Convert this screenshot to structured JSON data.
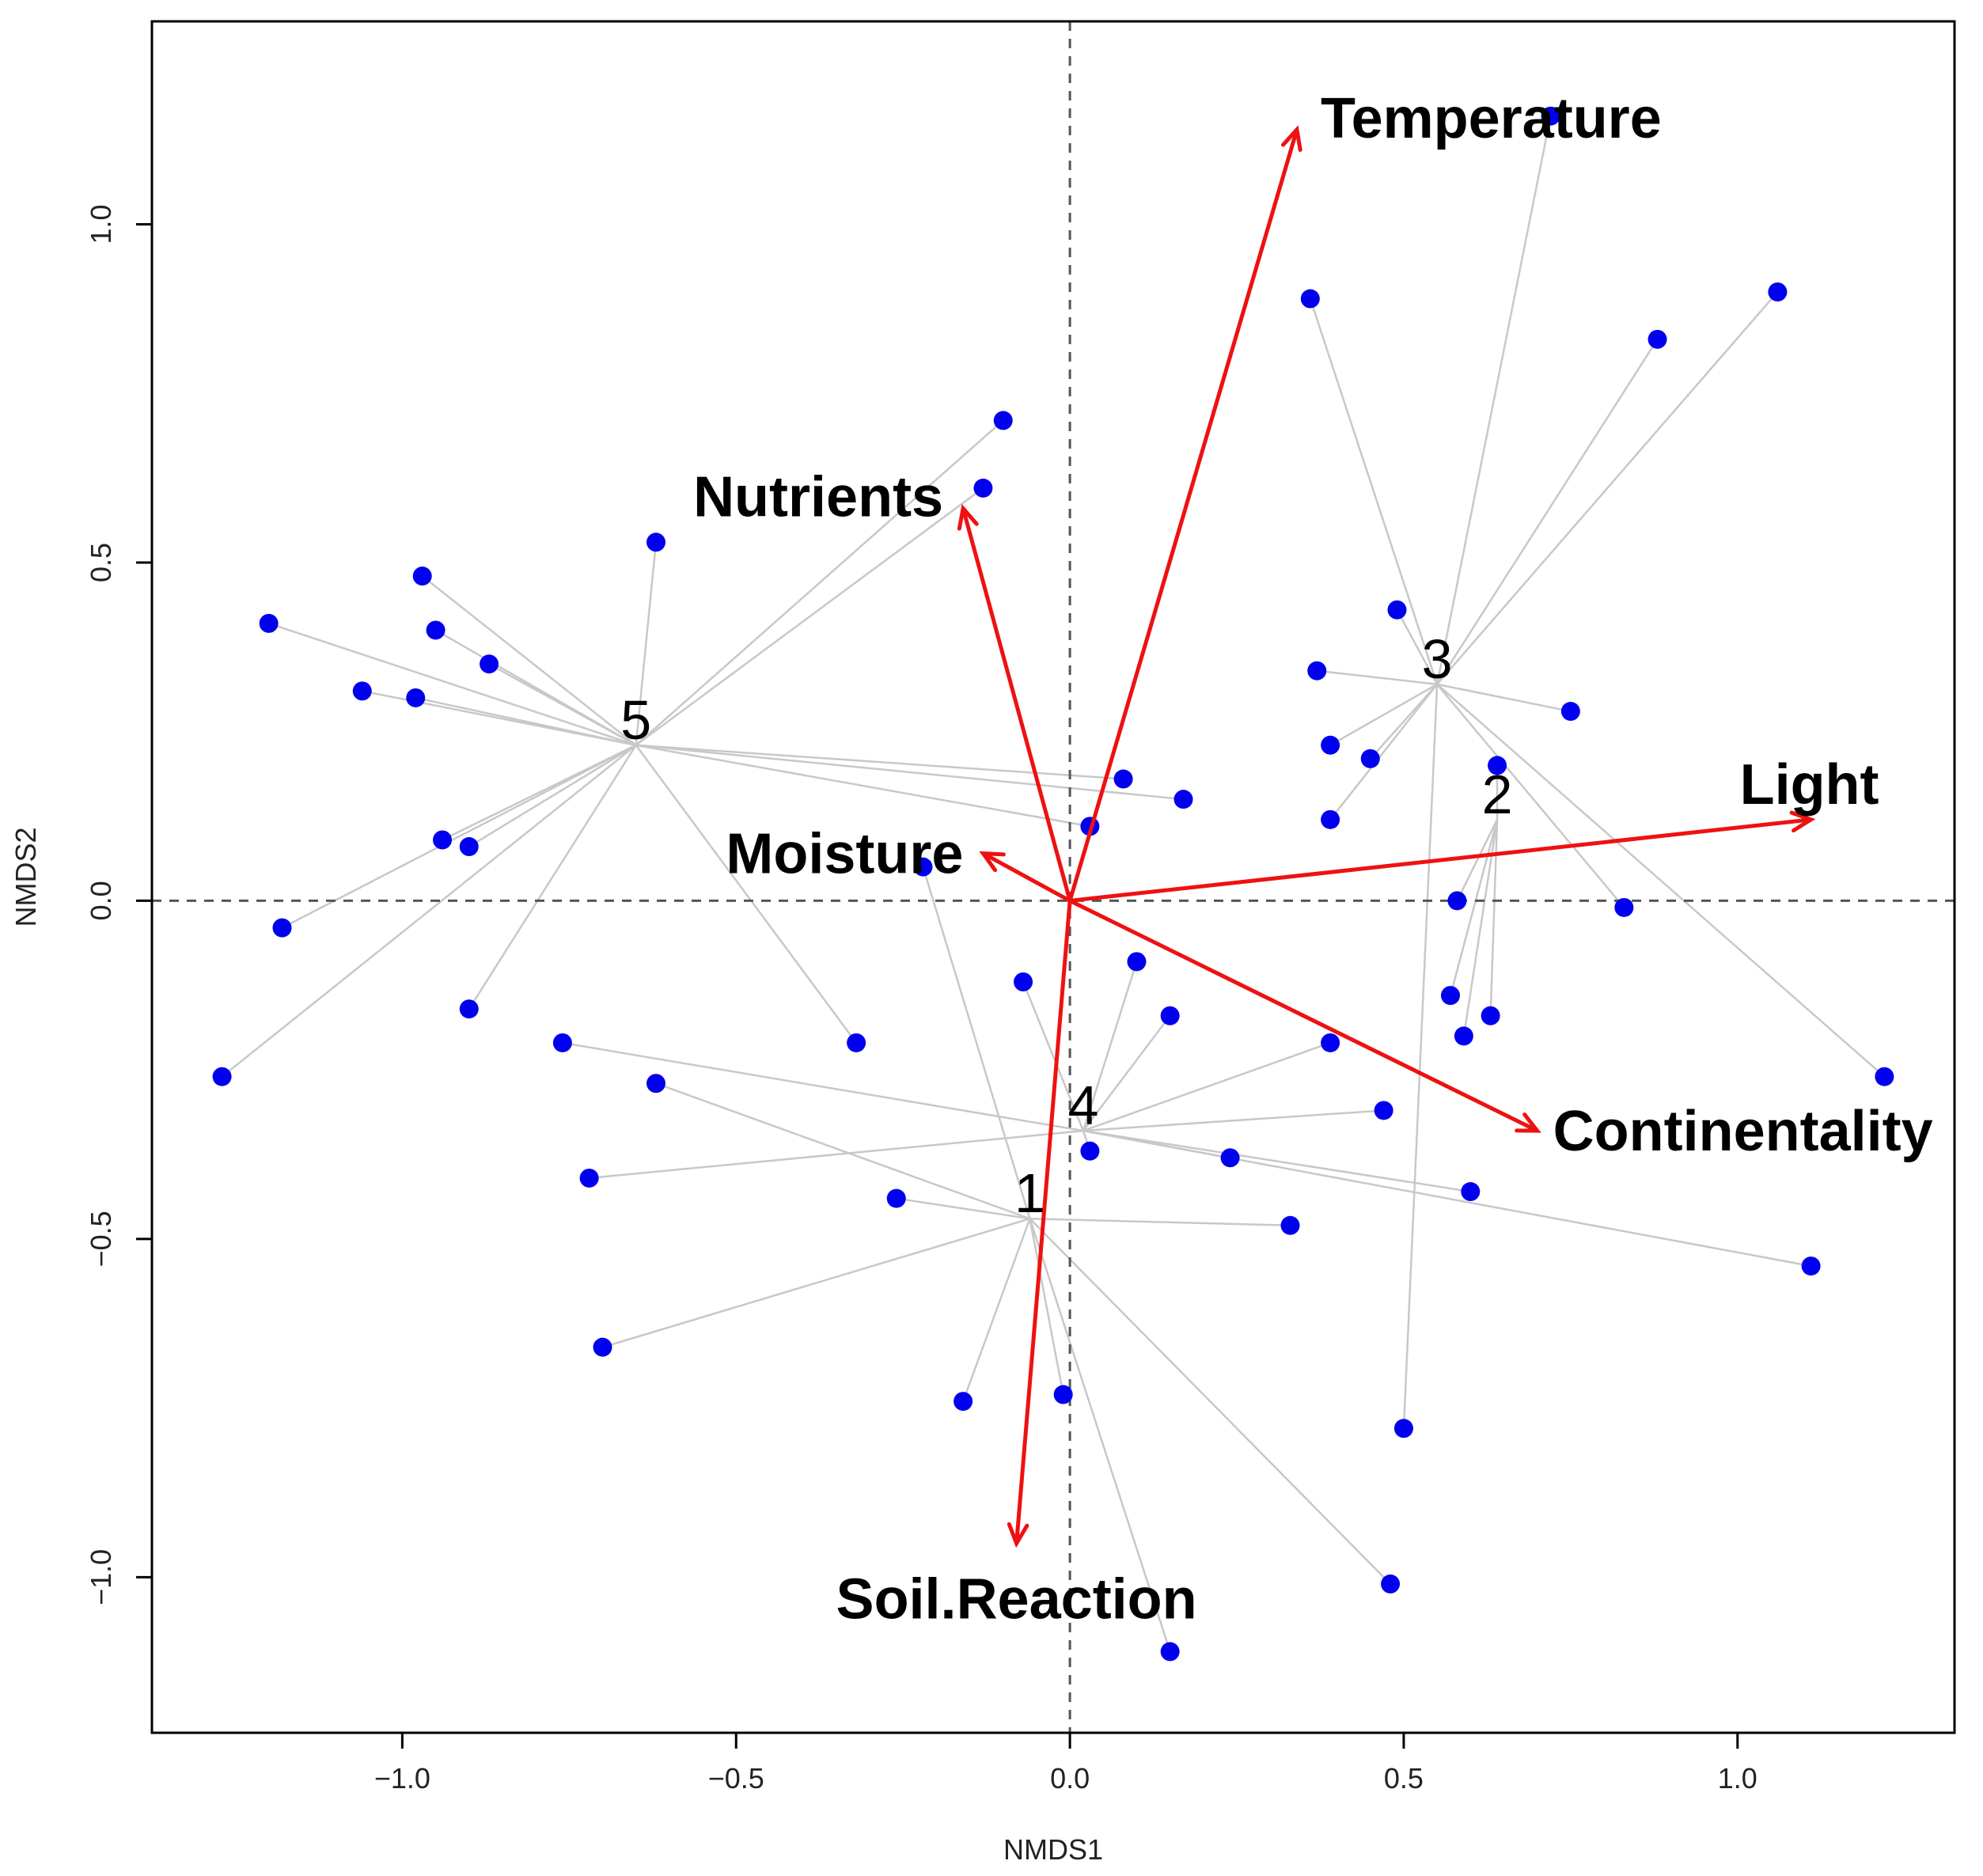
{
  "chart_data": {
    "type": "scatter",
    "xlabel": "NMDS1",
    "ylabel": "NMDS2",
    "xlim": [
      -1.375,
      1.325
    ],
    "ylim": [
      -1.23,
      1.3
    ],
    "xticks": [
      -1.0,
      -0.5,
      0.0,
      0.5,
      1.0
    ],
    "xtick_labels": [
      "−1.0",
      "−0.5",
      "0.0",
      "0.5",
      "1.0"
    ],
    "yticks": [
      -1.0,
      -0.5,
      0.0,
      0.5,
      1.0
    ],
    "ytick_labels": [
      "−1.0",
      "−0.5",
      "0.0",
      "0.5",
      "1.0"
    ],
    "zero_lines": true,
    "grid": false,
    "colors": {
      "points": "#0000ee",
      "arrows": "#ee1111",
      "spider": "#c8c8c8",
      "zero_line": "#555555",
      "frame": "#000000"
    },
    "centroids": [
      {
        "label": "1",
        "x": -0.06,
        "y": -0.47
      },
      {
        "label": "2",
        "x": 0.64,
        "y": 0.12
      },
      {
        "label": "3",
        "x": 0.55,
        "y": 0.32
      },
      {
        "label": "4",
        "x": 0.02,
        "y": -0.34
      },
      {
        "label": "5",
        "x": -0.65,
        "y": 0.23
      }
    ],
    "points": [
      {
        "x": 0.72,
        "y": 1.16,
        "group": "3"
      },
      {
        "x": 0.36,
        "y": 0.89,
        "group": "3"
      },
      {
        "x": 1.06,
        "y": 0.9,
        "group": "3"
      },
      {
        "x": 0.88,
        "y": 0.83,
        "group": "3"
      },
      {
        "x": 0.49,
        "y": 0.43,
        "group": "3"
      },
      {
        "x": 0.37,
        "y": 0.34,
        "group": "3"
      },
      {
        "x": 0.75,
        "y": 0.28,
        "group": "3"
      },
      {
        "x": 0.39,
        "y": 0.23,
        "group": "3"
      },
      {
        "x": 0.45,
        "y": 0.21,
        "group": "3"
      },
      {
        "x": 0.39,
        "y": 0.12,
        "group": "3"
      },
      {
        "x": 0.83,
        "y": -0.01,
        "group": "3"
      },
      {
        "x": 1.22,
        "y": -0.26,
        "group": "3"
      },
      {
        "x": 0.5,
        "y": -0.78,
        "group": "3"
      },
      {
        "x": 0.64,
        "y": 0.2,
        "group": "2"
      },
      {
        "x": 0.58,
        "y": 0.0,
        "group": "2"
      },
      {
        "x": 0.57,
        "y": -0.14,
        "group": "2"
      },
      {
        "x": 0.63,
        "y": -0.17,
        "group": "2"
      },
      {
        "x": 0.59,
        "y": -0.2,
        "group": "2"
      },
      {
        "x": -0.1,
        "y": 0.71,
        "group": "5"
      },
      {
        "x": -0.13,
        "y": 0.61,
        "group": "5"
      },
      {
        "x": -0.62,
        "y": 0.53,
        "group": "5"
      },
      {
        "x": -0.97,
        "y": 0.48,
        "group": "5"
      },
      {
        "x": -1.2,
        "y": 0.41,
        "group": "5"
      },
      {
        "x": -0.95,
        "y": 0.4,
        "group": "5"
      },
      {
        "x": -0.87,
        "y": 0.35,
        "group": "5"
      },
      {
        "x": -1.06,
        "y": 0.31,
        "group": "5"
      },
      {
        "x": -0.98,
        "y": 0.3,
        "group": "5"
      },
      {
        "x": 0.08,
        "y": 0.18,
        "group": "5"
      },
      {
        "x": 0.17,
        "y": 0.15,
        "group": "5"
      },
      {
        "x": 0.03,
        "y": 0.11,
        "group": "5"
      },
      {
        "x": -0.94,
        "y": 0.09,
        "group": "5"
      },
      {
        "x": -0.9,
        "y": 0.08,
        "group": "5"
      },
      {
        "x": -1.18,
        "y": -0.04,
        "group": "5"
      },
      {
        "x": -0.9,
        "y": -0.16,
        "group": "5"
      },
      {
        "x": -1.27,
        "y": -0.26,
        "group": "5"
      },
      {
        "x": -0.32,
        "y": -0.21,
        "group": "5"
      },
      {
        "x": 0.1,
        "y": -0.09,
        "group": "4"
      },
      {
        "x": -0.07,
        "y": -0.12,
        "group": "4"
      },
      {
        "x": 0.15,
        "y": -0.17,
        "group": "4"
      },
      {
        "x": 0.39,
        "y": -0.21,
        "group": "4"
      },
      {
        "x": -0.76,
        "y": -0.21,
        "group": "4"
      },
      {
        "x": 0.47,
        "y": -0.31,
        "group": "4"
      },
      {
        "x": 0.03,
        "y": -0.37,
        "group": "4"
      },
      {
        "x": 0.24,
        "y": -0.38,
        "group": "4"
      },
      {
        "x": -0.72,
        "y": -0.41,
        "group": "4"
      },
      {
        "x": 0.6,
        "y": -0.43,
        "group": "4"
      },
      {
        "x": 1.11,
        "y": -0.54,
        "group": "4"
      },
      {
        "x": -0.22,
        "y": 0.05,
        "group": "1"
      },
      {
        "x": -0.62,
        "y": -0.27,
        "group": "1"
      },
      {
        "x": -0.26,
        "y": -0.44,
        "group": "1"
      },
      {
        "x": 0.33,
        "y": -0.48,
        "group": "1"
      },
      {
        "x": -0.7,
        "y": -0.66,
        "group": "1"
      },
      {
        "x": -0.16,
        "y": -0.74,
        "group": "1"
      },
      {
        "x": -0.01,
        "y": -0.73,
        "group": "1"
      },
      {
        "x": 0.48,
        "y": -1.01,
        "group": "1"
      },
      {
        "x": 0.15,
        "y": -1.11,
        "group": "1"
      }
    ],
    "vectors": [
      {
        "name": "Temperature",
        "x": 0.34,
        "y": 1.14
      },
      {
        "name": "Nutrients",
        "x": -0.16,
        "y": 0.58
      },
      {
        "name": "Light",
        "x": 1.11,
        "y": 0.12
      },
      {
        "name": "Moisture",
        "x": -0.13,
        "y": 0.07
      },
      {
        "name": "Continentality",
        "x": 0.7,
        "y": -0.34
      },
      {
        "name": "Soil.Reaction",
        "x": -0.08,
        "y": -0.95
      }
    ]
  }
}
